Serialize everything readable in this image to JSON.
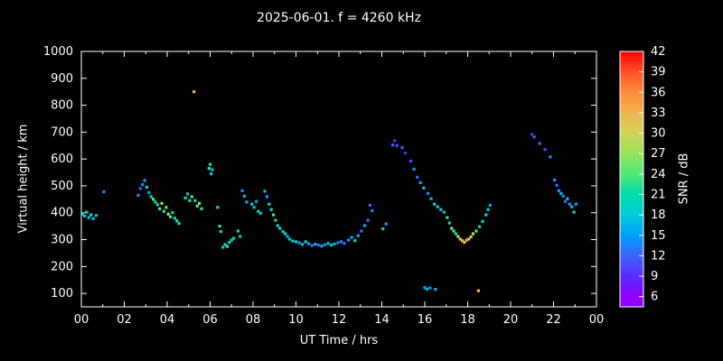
{
  "chart_data": {
    "type": "scatter",
    "title": "2025-06-01. f = 4260 kHz",
    "xlabel": "UT Time / hrs",
    "ylabel": "Virtual height / km",
    "xlim": [
      0,
      24
    ],
    "ylim": [
      50,
      1000
    ],
    "grid": false,
    "legend": "none",
    "background": "#000000",
    "frame_color": "#ffffff",
    "x_ticks": [
      "00",
      "02",
      "04",
      "06",
      "08",
      "10",
      "12",
      "14",
      "16",
      "18",
      "20",
      "22",
      "00"
    ],
    "y_ticks": [
      100,
      200,
      300,
      400,
      500,
      600,
      700,
      800,
      900,
      1000
    ],
    "colorbar": {
      "label": "SNR / dB",
      "range": [
        4.5,
        42
      ],
      "ticks": [
        6,
        9,
        12,
        15,
        18,
        21,
        24,
        27,
        30,
        33,
        36,
        39,
        42
      ],
      "colors": [
        "#9000ff",
        "#5a2aff",
        "#3c64ff",
        "#00a0ff",
        "#00ccd8",
        "#00dcaa",
        "#50e878",
        "#96e45a",
        "#d2d25a",
        "#f0b450",
        "#ff8c3c",
        "#ff5028",
        "#ff0000"
      ]
    },
    "points": [
      [
        0.05,
        395,
        18
      ],
      [
        0.15,
        388,
        20
      ],
      [
        0.25,
        402,
        18
      ],
      [
        0.35,
        382,
        17
      ],
      [
        0.45,
        392,
        19
      ],
      [
        0.55,
        378,
        18
      ],
      [
        0.7,
        390,
        16
      ],
      [
        1.05,
        478,
        14
      ],
      [
        2.65,
        465,
        14
      ],
      [
        2.75,
        490,
        12
      ],
      [
        2.85,
        505,
        13
      ],
      [
        2.95,
        520,
        15
      ],
      [
        3.05,
        495,
        18
      ],
      [
        3.15,
        475,
        15
      ],
      [
        3.25,
        460,
        21
      ],
      [
        3.35,
        450,
        24
      ],
      [
        3.45,
        440,
        20
      ],
      [
        3.55,
        430,
        22
      ],
      [
        3.65,
        415,
        24
      ],
      [
        3.75,
        435,
        26
      ],
      [
        3.85,
        405,
        22
      ],
      [
        3.95,
        420,
        25
      ],
      [
        4.05,
        395,
        27
      ],
      [
        4.15,
        385,
        24
      ],
      [
        4.25,
        400,
        21
      ],
      [
        4.35,
        380,
        19
      ],
      [
        4.45,
        370,
        22
      ],
      [
        4.55,
        360,
        20
      ],
      [
        4.85,
        455,
        21
      ],
      [
        4.95,
        470,
        18
      ],
      [
        5.05,
        445,
        22
      ],
      [
        5.15,
        460,
        24
      ],
      [
        5.25,
        850,
        33
      ],
      [
        5.3,
        445,
        21
      ],
      [
        5.4,
        425,
        25
      ],
      [
        5.5,
        435,
        27
      ],
      [
        5.6,
        415,
        22
      ],
      [
        5.95,
        565,
        23
      ],
      [
        6.0,
        580,
        21
      ],
      [
        6.05,
        545,
        19
      ],
      [
        6.1,
        560,
        17
      ],
      [
        6.35,
        420,
        21
      ],
      [
        6.45,
        350,
        23
      ],
      [
        6.5,
        330,
        20
      ],
      [
        6.6,
        272,
        18
      ],
      [
        6.7,
        282,
        21
      ],
      [
        6.8,
        275,
        23
      ],
      [
        6.9,
        290,
        20
      ],
      [
        7.0,
        298,
        18
      ],
      [
        7.1,
        305,
        21
      ],
      [
        7.3,
        332,
        21
      ],
      [
        7.4,
        312,
        18
      ],
      [
        7.5,
        482,
        14
      ],
      [
        7.6,
        462,
        17
      ],
      [
        7.7,
        440,
        15
      ],
      [
        7.95,
        432,
        20
      ],
      [
        8.05,
        420,
        17
      ],
      [
        8.15,
        442,
        15
      ],
      [
        8.25,
        405,
        21
      ],
      [
        8.35,
        398,
        18
      ],
      [
        8.55,
        480,
        17
      ],
      [
        8.65,
        460,
        15
      ],
      [
        8.75,
        432,
        18
      ],
      [
        8.85,
        412,
        20
      ],
      [
        8.95,
        392,
        23
      ],
      [
        9.05,
        372,
        21
      ],
      [
        9.15,
        352,
        18
      ],
      [
        9.25,
        342,
        20
      ],
      [
        9.4,
        330,
        20
      ],
      [
        9.5,
        322,
        18
      ],
      [
        9.6,
        312,
        15
      ],
      [
        9.7,
        302,
        17
      ],
      [
        9.85,
        295,
        20
      ],
      [
        10.0,
        292,
        18
      ],
      [
        10.15,
        288,
        15
      ],
      [
        10.3,
        282,
        17
      ],
      [
        10.45,
        292,
        20
      ],
      [
        10.6,
        285,
        15
      ],
      [
        10.75,
        278,
        13
      ],
      [
        10.9,
        283,
        17
      ],
      [
        11.05,
        280,
        12
      ],
      [
        11.2,
        276,
        16
      ],
      [
        11.35,
        281,
        14
      ],
      [
        11.5,
        286,
        17
      ],
      [
        11.65,
        280,
        19
      ],
      [
        11.8,
        284,
        15
      ],
      [
        11.95,
        288,
        13
      ],
      [
        12.1,
        292,
        15
      ],
      [
        12.25,
        286,
        12
      ],
      [
        12.45,
        298,
        14
      ],
      [
        12.6,
        308,
        16
      ],
      [
        12.75,
        296,
        19
      ],
      [
        12.9,
        315,
        15
      ],
      [
        13.05,
        332,
        13
      ],
      [
        13.2,
        352,
        15
      ],
      [
        13.35,
        372,
        13
      ],
      [
        13.45,
        428,
        12
      ],
      [
        13.55,
        408,
        14
      ],
      [
        14.05,
        340,
        19
      ],
      [
        14.2,
        358,
        15
      ],
      [
        14.5,
        652,
        12
      ],
      [
        14.6,
        668,
        9
      ],
      [
        14.7,
        650,
        11
      ],
      [
        14.95,
        642,
        12
      ],
      [
        15.1,
        622,
        9
      ],
      [
        15.35,
        592,
        11
      ],
      [
        15.5,
        562,
        14
      ],
      [
        15.65,
        532,
        12
      ],
      [
        15.8,
        512,
        15
      ],
      [
        15.95,
        492,
        17
      ],
      [
        16.15,
        472,
        14
      ],
      [
        16.3,
        452,
        17
      ],
      [
        16.45,
        432,
        20
      ],
      [
        16.6,
        422,
        17
      ],
      [
        16.75,
        412,
        19
      ],
      [
        16.9,
        402,
        17
      ],
      [
        16.0,
        122,
        15
      ],
      [
        16.1,
        116,
        17
      ],
      [
        16.25,
        120,
        14
      ],
      [
        16.5,
        115,
        17
      ],
      [
        17.05,
        382,
        23
      ],
      [
        17.15,
        362,
        21
      ],
      [
        17.25,
        342,
        26
      ],
      [
        17.35,
        332,
        24
      ],
      [
        17.45,
        322,
        21
      ],
      [
        17.55,
        312,
        27
      ],
      [
        17.65,
        302,
        30
      ],
      [
        17.75,
        296,
        33
      ],
      [
        17.85,
        290,
        31
      ],
      [
        17.95,
        298,
        34
      ],
      [
        18.05,
        302,
        33
      ],
      [
        18.15,
        310,
        30
      ],
      [
        18.25,
        322,
        27
      ],
      [
        18.4,
        332,
        24
      ],
      [
        18.5,
        110,
        33
      ],
      [
        18.55,
        348,
        21
      ],
      [
        18.7,
        368,
        19
      ],
      [
        18.85,
        392,
        21
      ],
      [
        18.95,
        412,
        18
      ],
      [
        19.05,
        428,
        15
      ],
      [
        21.0,
        692,
        9
      ],
      [
        21.1,
        682,
        11
      ],
      [
        21.35,
        658,
        12
      ],
      [
        21.6,
        635,
        11
      ],
      [
        21.85,
        608,
        14
      ],
      [
        22.05,
        522,
        14
      ],
      [
        22.15,
        502,
        12
      ],
      [
        22.25,
        482,
        15
      ],
      [
        22.35,
        472,
        17
      ],
      [
        22.45,
        462,
        14
      ],
      [
        22.55,
        442,
        12
      ],
      [
        22.65,
        452,
        17
      ],
      [
        22.75,
        432,
        15
      ],
      [
        22.85,
        422,
        17
      ],
      [
        22.95,
        402,
        20
      ],
      [
        23.05,
        432,
        15
      ]
    ]
  }
}
